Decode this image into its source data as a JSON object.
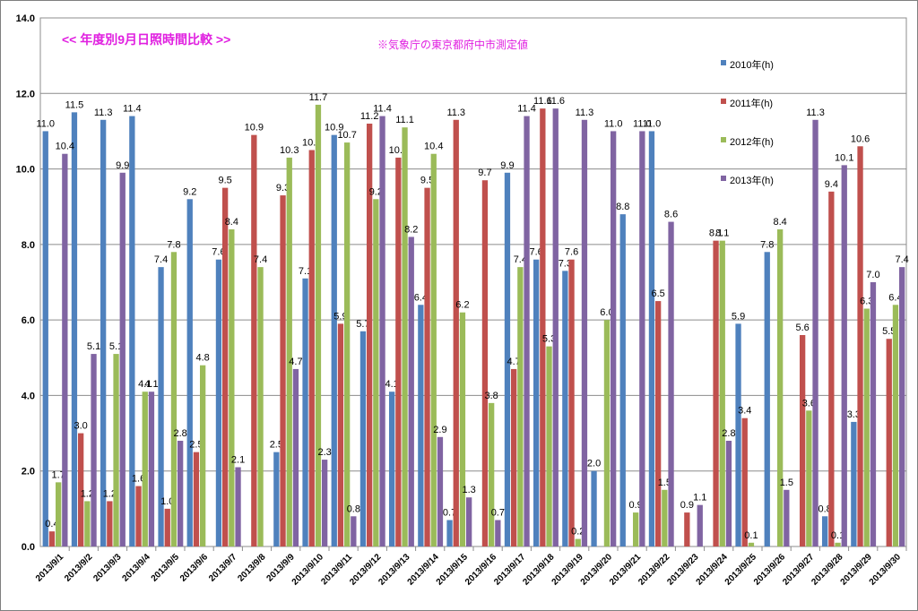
{
  "chart_data": {
    "type": "bar",
    "title": "<<  年度別9月日照時間比較  >>",
    "note": "※気象庁の東京都府中市測定値",
    "xlabel": "",
    "ylabel": "",
    "ylim": [
      0,
      14
    ],
    "yticks": [
      "0.0",
      "2.0",
      "4.0",
      "6.0",
      "8.0",
      "10.0",
      "12.0",
      "14.0"
    ],
    "grid": true,
    "legend_position": "right",
    "categories": [
      "2013/9/1",
      "2013/9/2",
      "2013/9/3",
      "2013/9/4",
      "2013/9/5",
      "2013/9/6",
      "2013/9/7",
      "2013/9/8",
      "2013/9/9",
      "2013/9/10",
      "2013/9/11",
      "2013/9/12",
      "2013/9/13",
      "2013/9/14",
      "2013/9/15",
      "2013/9/16",
      "2013/9/17",
      "2013/9/18",
      "2013/9/19",
      "2013/9/20",
      "2013/9/21",
      "2013/9/22",
      "2013/9/23",
      "2013/9/24",
      "2013/9/25",
      "2013/9/26",
      "2013/9/27",
      "2013/9/28",
      "2013/9/29",
      "2013/9/30"
    ],
    "series": [
      {
        "name": "2010年(h)",
        "color": "#4f81bd",
        "values": [
          11.0,
          11.5,
          11.3,
          11.4,
          7.4,
          9.2,
          7.6,
          null,
          2.5,
          7.1,
          10.9,
          5.7,
          4.1,
          6.4,
          0.7,
          null,
          9.9,
          7.6,
          7.3,
          2.0,
          8.8,
          11.0,
          null,
          null,
          5.9,
          7.8,
          null,
          0.8,
          3.3,
          null
        ]
      },
      {
        "name": "2011年(h)",
        "color": "#c0504d",
        "values": [
          0.4,
          3.0,
          1.2,
          1.6,
          1.0,
          2.5,
          9.5,
          10.9,
          9.3,
          10.5,
          5.9,
          11.2,
          10.3,
          9.5,
          11.3,
          9.7,
          4.7,
          11.6,
          7.6,
          null,
          null,
          6.5,
          0.9,
          8.1,
          3.4,
          null,
          5.6,
          9.4,
          10.6,
          5.5
        ]
      },
      {
        "name": "2012年(h)",
        "color": "#9bbb59",
        "values": [
          1.7,
          1.2,
          5.1,
          4.1,
          7.8,
          4.8,
          8.4,
          7.4,
          10.3,
          11.7,
          10.7,
          9.2,
          11.1,
          10.4,
          6.2,
          3.8,
          7.4,
          5.3,
          0.2,
          6.0,
          0.9,
          1.5,
          null,
          8.1,
          0.1,
          8.4,
          3.6,
          0.1,
          6.3,
          6.4
        ]
      },
      {
        "name": "2013年(h)",
        "color": "#8064a2",
        "values": [
          10.4,
          5.1,
          9.9,
          4.1,
          2.8,
          null,
          2.1,
          null,
          4.7,
          2.3,
          0.8,
          11.4,
          8.2,
          2.9,
          1.3,
          0.7,
          11.4,
          11.6,
          11.3,
          11.0,
          11.0,
          8.6,
          1.1,
          2.8,
          null,
          1.5,
          11.3,
          10.1,
          7.0,
          7.4
        ]
      }
    ]
  }
}
